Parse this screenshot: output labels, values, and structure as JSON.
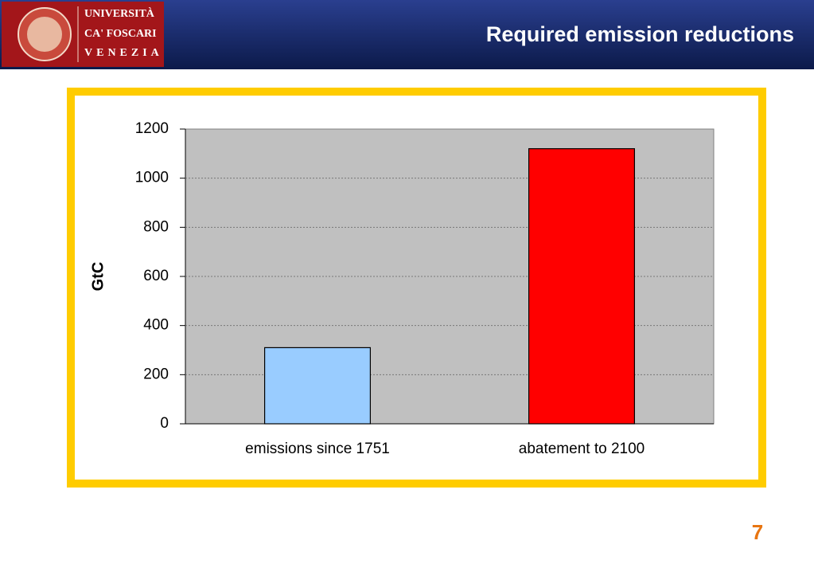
{
  "header": {
    "logo_lines": [
      "UNIVERSITÀ",
      "CA' FOSCARI",
      "VENEZIA"
    ],
    "title": "Required emission reductions"
  },
  "page_number": 7,
  "chart_data": {
    "type": "bar",
    "y_label": "GtC",
    "categories": [
      "emissions since 1751",
      "abatement to 2100"
    ],
    "values": [
      310,
      1120
    ],
    "colors": [
      "#99ccff",
      "#ff0000"
    ],
    "ylim": [
      0,
      1200
    ],
    "yticks": [
      0,
      200,
      400,
      600,
      800,
      1000,
      1200
    ],
    "grid": true
  }
}
